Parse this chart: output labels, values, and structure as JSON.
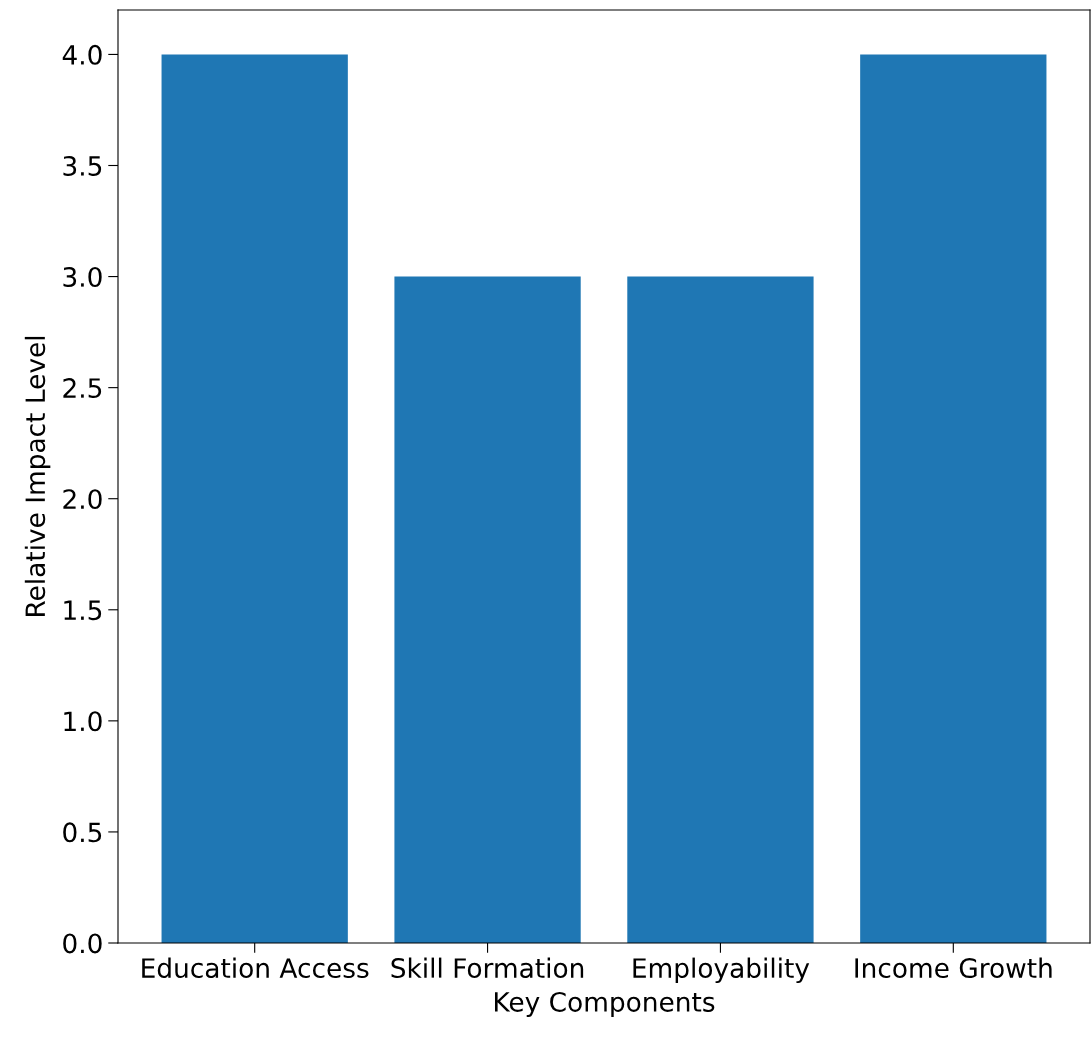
{
  "chart_data": {
    "type": "bar",
    "xlabel": "Key Components",
    "ylabel": "Relative Impact Level",
    "categories": [
      "Education Access",
      "Skill Formation",
      "Employability",
      "Income Growth"
    ],
    "values": [
      4,
      3,
      3,
      4
    ],
    "color": "#1f77b4",
    "ylim": [
      0,
      4.2
    ],
    "yticks": [
      {
        "value": 0,
        "label": "0.0"
      },
      0.5,
      {
        "value": 1,
        "label": "1.0"
      },
      1.5,
      {
        "value": 2,
        "label": "2.0"
      },
      2.5,
      {
        "value": 3,
        "label": "3.0"
      },
      3.5,
      {
        "value": 4,
        "label": "4.0"
      }
    ],
    "grid": false,
    "legend": false
  }
}
